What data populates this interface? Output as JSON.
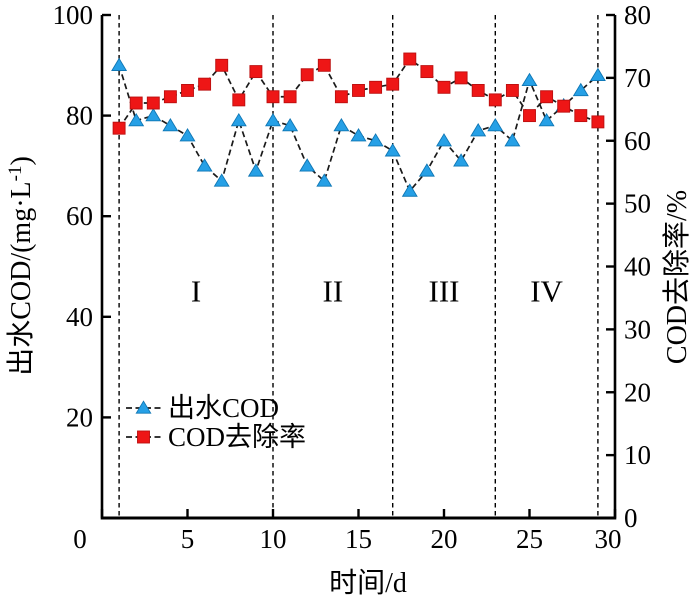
{
  "figure": {
    "background": "#ffffff",
    "axis_color": "#000000",
    "connector_color": "#1a1a1a",
    "divider_color": "#000000"
  },
  "chart_data": {
    "type": "line",
    "title": "",
    "x_label": "时间/d",
    "y_label_left": "出水COD/(mg·L⁻¹)",
    "y_label_right": "COD去除率/%",
    "x_lim": [
      0,
      30
    ],
    "y_lim_left": [
      0,
      100
    ],
    "y_lim_right": [
      0,
      80
    ],
    "x_ticks": [
      0,
      5,
      10,
      15,
      20,
      25,
      30
    ],
    "y_ticks_left": [
      0,
      20,
      40,
      60,
      80,
      100
    ],
    "y_ticks_right": [
      0,
      10,
      20,
      30,
      40,
      50,
      60,
      70,
      80
    ],
    "days": [
      1,
      2,
      3,
      4,
      5,
      6,
      7,
      8,
      9,
      10,
      11,
      12,
      13,
      14,
      15,
      16,
      17,
      18,
      19,
      20,
      21,
      22,
      23,
      24,
      25,
      26,
      27,
      28,
      29
    ],
    "series": [
      {
        "name": "出水COD",
        "axis": "left",
        "marker": "triangle",
        "color": "#26A0E6",
        "values": [
          90,
          79,
          80,
          78,
          76,
          70,
          67,
          79,
          69,
          79,
          78,
          70,
          67,
          78,
          76,
          75,
          73,
          65,
          69,
          75,
          71,
          77,
          78,
          75,
          87,
          79,
          82,
          85,
          88
        ]
      },
      {
        "name": "COD去除率",
        "axis": "right",
        "marker": "square",
        "color": "#EE1616",
        "values": [
          62,
          66,
          66,
          67,
          68,
          69,
          72,
          66.5,
          71,
          67,
          67,
          70.5,
          72,
          67,
          68,
          68.5,
          69,
          73,
          71,
          68.5,
          70,
          68,
          66.5,
          68,
          64,
          67,
          65.5,
          64,
          63
        ]
      }
    ],
    "phase_divider_days": [
      1,
      10,
      17,
      23,
      29
    ],
    "phase_labels": [
      {
        "text": "I",
        "day": 5.5
      },
      {
        "text": "II",
        "day": 13.5
      },
      {
        "text": "III",
        "day": 20
      },
      {
        "text": "IV",
        "day": 26
      }
    ],
    "phase_label_value": 45,
    "legend": {
      "items": [
        {
          "label": "出水COD",
          "marker": "triangle",
          "color": "#26A0E6"
        },
        {
          "label": "COD去除率",
          "marker": "square",
          "color": "#EE1616"
        }
      ]
    }
  }
}
